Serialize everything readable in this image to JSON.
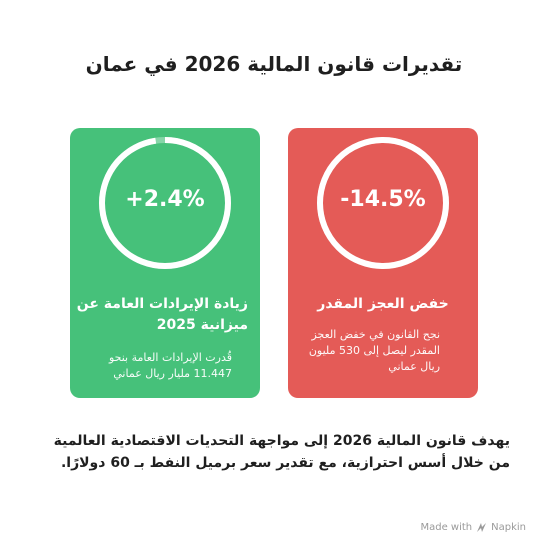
{
  "title": "تقديرات قانون المالية 2026 في عمان",
  "cards": [
    {
      "value": "+2.4%",
      "progress": 0.976,
      "title": "زيادة الإيرادات العامة عن ميزانية 2025",
      "text": "قُدرت الإيرادات العامة بنحو 11.447 مليار ريال عماني",
      "color": "#46c17a"
    },
    {
      "value": "-14.5%",
      "progress": 1.0,
      "title": "خفض العجز المقدر",
      "text": "نجح القانون في خفض العجز المقدر ليصل إلى 530 مليون ريال عماني",
      "color": "#e45b57"
    }
  ],
  "body_text": "يهدف قانون المالية 2026 إلى مواجهة التحديات الاقتصادية العالمية من خلال أسس احترازية، مع تقدير سعر برميل النفط بـ 60 دولارًا.",
  "footer": {
    "made_with": "Made with",
    "brand": "Napkin",
    "icon": "napkin-logo-icon"
  }
}
